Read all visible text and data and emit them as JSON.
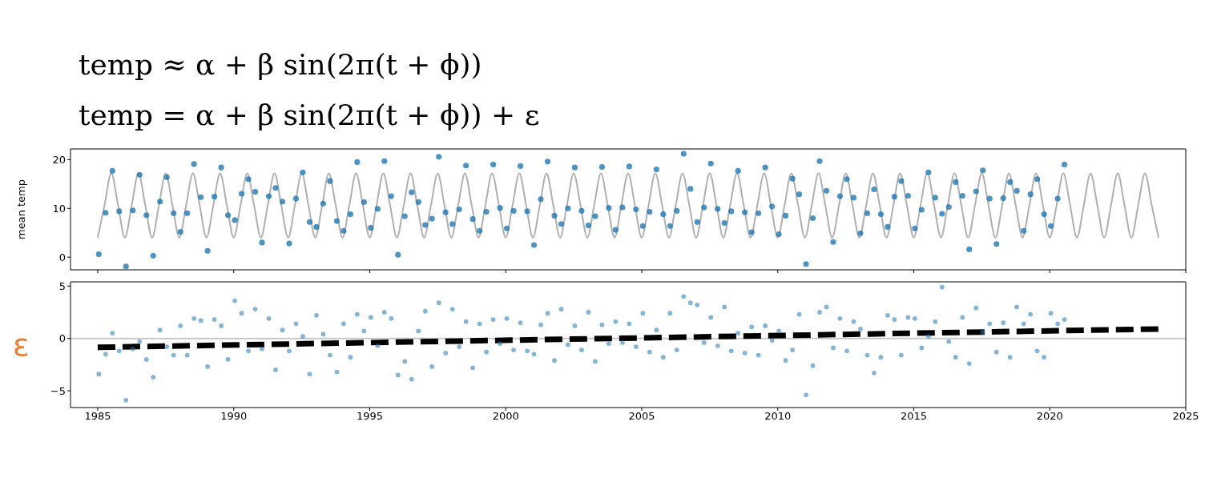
{
  "chart_data": [
    {
      "type": "scatter",
      "title": "temp ≈ α + β sin(2π(t + ϕ))",
      "subtitle": "temp = α + β sin(2π(t + ϕ)) + ε",
      "ylabel": "mean temp",
      "xlim": [
        1984,
        2025
      ],
      "xticks": [
        1985,
        1990,
        1995,
        2000,
        2005,
        2010,
        2015,
        2020,
        2025
      ],
      "ylim": [
        -2.6,
        22.2
      ],
      "yticks": [
        0,
        10,
        20
      ],
      "tick_labels": "y",
      "series": [
        {
          "type": "line",
          "color": "#b0b0b0",
          "marker": "none",
          "line_style": "solid",
          "x": [
            1985,
            1985.25,
            1985.5,
            1985.75,
            1986,
            1986.25,
            1986.5,
            1986.75,
            1987,
            1987.25,
            1987.5,
            1987.75,
            1988,
            1988.25,
            1988.5,
            1988.75,
            1989,
            1989.25,
            1989.5,
            1989.75,
            1990,
            1990.25,
            1990.5,
            1990.75,
            1991,
            1991.25,
            1991.5,
            1991.75,
            1992,
            1992.25,
            1992.5,
            1992.75,
            1993,
            1993.25,
            1993.5,
            1993.75,
            1994,
            1994.25,
            1994.5,
            1994.75,
            1995,
            1995.25,
            1995.5,
            1995.75,
            1996,
            1996.25,
            1996.5,
            1996.75,
            1997,
            1997.25,
            1997.5,
            1997.75,
            1998,
            1998.25,
            1998.5,
            1998.75,
            1999,
            1999.25,
            1999.5,
            1999.75,
            2000,
            2000.25,
            2000.5,
            2000.75,
            2001,
            2001.25,
            2001.5,
            2001.75,
            2002,
            2002.25,
            2002.5,
            2002.75,
            2003,
            2003.25,
            2003.5,
            2003.75,
            2004,
            2004.25,
            2004.5,
            2004.75,
            2005,
            2005.25,
            2005.5,
            2005.75,
            2006,
            2006.25,
            2006.5,
            2006.75,
            2007,
            2007.25,
            2007.5,
            2007.75,
            2008,
            2008.25,
            2008.5,
            2008.75,
            2009,
            2009.25,
            2009.5,
            2009.75,
            2010,
            2010.25,
            2010.5,
            2010.75,
            2011,
            2011.25,
            2011.5,
            2011.75,
            2012,
            2012.25,
            2012.5,
            2012.75,
            2013,
            2013.25,
            2013.5,
            2013.75,
            2014,
            2014.25,
            2014.5,
            2014.75,
            2015,
            2015.25,
            2015.5,
            2015.75,
            2016,
            2016.25,
            2016.5,
            2016.75,
            2017,
            2017.25,
            2017.5,
            2017.75,
            2018,
            2018.25,
            2018.5,
            2018.75,
            2019,
            2019.25,
            2019.5,
            2019.75,
            2020,
            2020.25,
            2020.5,
            2020.75,
            2021,
            2021.25,
            2021.5,
            2021.75,
            2022,
            2022.25,
            2022.5,
            2022.75,
            2023,
            2023.25,
            2023.5,
            2023.75,
            2024
          ],
          "values": [
            4.0,
            10.6,
            17.2,
            10.6,
            4.0,
            10.6,
            17.2,
            10.6,
            4.0,
            10.6,
            17.2,
            10.6,
            4.0,
            10.6,
            17.2,
            10.6,
            4.0,
            10.6,
            17.2,
            10.6,
            4.0,
            10.6,
            17.2,
            10.6,
            4.0,
            10.6,
            17.2,
            10.6,
            4.0,
            10.6,
            17.2,
            10.6,
            4.0,
            10.6,
            17.2,
            10.6,
            4.0,
            10.6,
            17.2,
            10.6,
            4.0,
            10.6,
            17.2,
            10.6,
            4.0,
            10.6,
            17.2,
            10.6,
            4.0,
            10.6,
            17.2,
            10.6,
            4.0,
            10.6,
            17.2,
            10.6,
            4.0,
            10.6,
            17.2,
            10.6,
            4.0,
            10.6,
            17.2,
            10.6,
            4.0,
            10.6,
            17.2,
            10.6,
            4.0,
            10.6,
            17.2,
            10.6,
            4.0,
            10.6,
            17.2,
            10.6,
            4.0,
            10.6,
            17.2,
            10.6,
            4.0,
            10.6,
            17.2,
            10.6,
            4.0,
            10.6,
            17.2,
            10.6,
            4.0,
            10.6,
            17.2,
            10.6,
            4.0,
            10.6,
            17.2,
            10.6,
            4.0,
            10.6,
            17.2,
            10.6,
            4.0,
            10.6,
            17.2,
            10.6,
            4.0,
            10.6,
            17.2,
            10.6,
            4.0,
            10.6,
            17.2,
            10.6,
            4.0,
            10.6,
            17.2,
            10.6,
            4.0,
            10.6,
            17.2,
            10.6,
            4.0,
            10.6,
            17.2,
            10.6,
            4.0,
            10.6,
            17.2,
            10.6,
            4.0,
            10.6,
            17.2,
            10.6,
            4.0,
            10.6,
            17.2,
            10.6,
            4.0,
            10.6,
            17.2,
            10.6,
            4.0,
            10.6,
            17.2,
            10.6,
            4.0,
            10.6,
            17.2,
            10.6,
            4.0,
            10.6,
            17.2,
            10.6,
            4.0,
            10.6,
            17.2,
            10.6,
            4.0
          ]
        },
        {
          "color": "#1f77b4",
          "marker": "circle",
          "x": [
            1985.04,
            1985.29,
            1985.54,
            1985.79,
            1986.04,
            1986.29,
            1986.54,
            1986.79,
            1987.04,
            1987.29,
            1987.54,
            1987.79,
            1988.04,
            1988.29,
            1988.54,
            1988.79,
            1989.04,
            1989.29,
            1989.54,
            1989.79,
            1990.04,
            1990.29,
            1990.54,
            1990.79,
            1991.04,
            1991.29,
            1991.54,
            1991.79,
            1992.04,
            1992.29,
            1992.54,
            1992.79,
            1993.04,
            1993.29,
            1993.54,
            1993.79,
            1994.04,
            1994.29,
            1994.54,
            1994.79,
            1995.04,
            1995.29,
            1995.54,
            1995.79,
            1996.04,
            1996.29,
            1996.54,
            1996.79,
            1997.04,
            1997.29,
            1997.54,
            1997.79,
            1998.04,
            1998.29,
            1998.54,
            1998.79,
            1999.04,
            1999.29,
            1999.54,
            1999.79,
            2000.04,
            2000.29,
            2000.54,
            2000.79,
            2001.04,
            2001.29,
            2001.54,
            2001.79,
            2002.04,
            2002.29,
            2002.54,
            2002.79,
            2003.04,
            2003.29,
            2003.54,
            2003.79,
            2004.04,
            2004.29,
            2004.54,
            2004.79,
            2005.04,
            2005.29,
            2005.54,
            2005.79,
            2006.04,
            2006.29,
            2006.54,
            2006.79,
            2007.04,
            2007.29,
            2007.54,
            2007.79,
            2008.04,
            2008.29,
            2008.54,
            2008.79,
            2009.04,
            2009.29,
            2009.54,
            2009.79,
            2010.04,
            2010.29,
            2010.54,
            2010.79,
            2011.04,
            2011.29,
            2011.54,
            2011.79,
            2012.04,
            2012.29,
            2012.54,
            2012.79,
            2013.04,
            2013.29,
            2013.54,
            2013.79,
            2014.04,
            2014.29,
            2014.54,
            2014.79,
            2015.04,
            2015.29,
            2015.54,
            2015.79,
            2016.04,
            2016.29,
            2016.54,
            2016.79,
            2017.04,
            2017.29,
            2017.54,
            2017.79,
            2018.04,
            2018.29,
            2018.54,
            2018.79,
            2019.04,
            2019.29,
            2019.54,
            2019.79,
            2020.04,
            2020.29,
            2020.54
          ],
          "values": [
            0.6,
            9.1,
            17.7,
            9.4,
            -1.9,
            9.6,
            16.9,
            8.6,
            0.3,
            11.4,
            16.4,
            9.0,
            5.2,
            9.0,
            19.1,
            12.3,
            1.3,
            12.4,
            18.4,
            8.6,
            7.6,
            13.0,
            16.0,
            13.4,
            3.0,
            12.5,
            14.2,
            11.4,
            2.8,
            12.0,
            17.4,
            7.2,
            6.2,
            11.0,
            15.6,
            7.4,
            5.4,
            8.8,
            19.5,
            11.3,
            6.0,
            9.9,
            19.7,
            12.5,
            0.5,
            8.4,
            13.3,
            11.3,
            6.6,
            7.9,
            20.6,
            9.2,
            6.8,
            9.8,
            18.8,
            7.8,
            5.4,
            9.3,
            19.0,
            10.1,
            5.9,
            9.5,
            18.7,
            9.4,
            2.5,
            11.9,
            19.6,
            8.5,
            6.8,
            10.0,
            18.4,
            9.5,
            6.5,
            8.4,
            18.5,
            10.1,
            5.6,
            10.2,
            18.6,
            9.8,
            6.4,
            9.3,
            18.0,
            8.8,
            6.4,
            9.5,
            21.2,
            14.0,
            7.2,
            10.2,
            19.2,
            9.9,
            7.0,
            9.4,
            17.7,
            9.2,
            5.1,
            9.0,
            18.4,
            10.4,
            4.7,
            8.5,
            16.1,
            12.9,
            -1.4,
            8.0,
            19.7,
            13.6,
            3.1,
            12.5,
            16.0,
            12.2,
            4.9,
            9.0,
            13.9,
            8.8,
            6.2,
            12.4,
            15.6,
            12.6,
            5.9,
            9.7,
            17.4,
            12.2,
            8.9,
            10.3,
            15.4,
            12.6,
            1.6,
            13.5,
            17.8,
            12.0,
            2.7,
            12.1,
            15.4,
            13.6,
            5.4,
            12.9,
            16.0,
            8.8,
            6.4,
            12.0,
            19.0
          ]
        }
      ]
    },
    {
      "type": "scatter",
      "ylabel": "ε",
      "xlim": [
        1984,
        2025
      ],
      "xticks": [
        1985,
        1990,
        1995,
        2000,
        2005,
        2010,
        2015,
        2020,
        2025
      ],
      "ylim": [
        -6.6,
        5.4
      ],
      "yticks": [
        -5,
        0,
        5
      ],
      "ref_lines": [
        {
          "axis": "y",
          "value": 0,
          "color": "#c8c8c8"
        }
      ],
      "series": [
        {
          "color": "#1f77b4",
          "marker": "circle",
          "x": [
            1985.04,
            1985.29,
            1985.54,
            1985.79,
            1986.04,
            1986.29,
            1986.54,
            1986.79,
            1987.04,
            1987.29,
            1987.54,
            1987.79,
            1988.04,
            1988.29,
            1988.54,
            1988.79,
            1989.04,
            1989.29,
            1989.54,
            1989.79,
            1990.04,
            1990.29,
            1990.54,
            1990.79,
            1991.04,
            1991.29,
            1991.54,
            1991.79,
            1992.04,
            1992.29,
            1992.54,
            1992.79,
            1993.04,
            1993.29,
            1993.54,
            1993.79,
            1994.04,
            1994.29,
            1994.54,
            1994.79,
            1995.04,
            1995.29,
            1995.54,
            1995.79,
            1996.04,
            1996.29,
            1996.54,
            1996.79,
            1997.04,
            1997.29,
            1997.54,
            1997.79,
            1998.04,
            1998.29,
            1998.54,
            1998.79,
            1999.04,
            1999.29,
            1999.54,
            1999.79,
            2000.04,
            2000.29,
            2000.54,
            2000.79,
            2001.04,
            2001.29,
            2001.54,
            2001.79,
            2002.04,
            2002.29,
            2002.54,
            2002.79,
            2003.04,
            2003.29,
            2003.54,
            2003.79,
            2004.04,
            2004.29,
            2004.54,
            2004.79,
            2005.04,
            2005.29,
            2005.54,
            2005.79,
            2006.04,
            2006.29,
            2006.54,
            2006.79,
            2007.04,
            2007.29,
            2007.54,
            2007.79,
            2008.04,
            2008.29,
            2008.54,
            2008.79,
            2009.04,
            2009.29,
            2009.54,
            2009.79,
            2010.04,
            2010.29,
            2010.54,
            2010.79,
            2011.04,
            2011.29,
            2011.54,
            2011.79,
            2012.04,
            2012.29,
            2012.54,
            2012.79,
            2013.04,
            2013.29,
            2013.54,
            2013.79,
            2014.04,
            2014.29,
            2014.54,
            2014.79,
            2015.04,
            2015.29,
            2015.54,
            2015.79,
            2016.04,
            2016.29,
            2016.54,
            2016.79,
            2017.04,
            2017.29,
            2017.54,
            2017.79,
            2018.04,
            2018.29,
            2018.54,
            2018.79,
            2019.04,
            2019.29,
            2019.54,
            2019.79,
            2020.04,
            2020.29,
            2020.54
          ],
          "values": [
            -3.4,
            -1.5,
            0.5,
            -1.2,
            -5.9,
            -1.0,
            -0.3,
            -2.0,
            -3.7,
            0.8,
            -0.8,
            -1.6,
            1.2,
            -1.6,
            1.9,
            1.7,
            -2.7,
            1.8,
            1.2,
            -2.0,
            3.6,
            2.4,
            -1.2,
            2.8,
            -1.0,
            1.9,
            -3.0,
            0.8,
            -1.2,
            1.4,
            0.2,
            -3.4,
            2.2,
            0.4,
            -1.6,
            -3.2,
            1.4,
            -1.8,
            2.3,
            0.7,
            2.0,
            -0.7,
            2.5,
            1.9,
            -3.5,
            -2.2,
            -3.9,
            0.7,
            2.6,
            -2.7,
            3.4,
            -1.4,
            2.8,
            -0.8,
            1.6,
            -2.8,
            1.4,
            -1.3,
            1.8,
            -0.5,
            1.9,
            -1.1,
            1.5,
            -1.2,
            -1.5,
            1.3,
            2.4,
            -2.1,
            2.8,
            -0.6,
            1.2,
            -1.1,
            2.5,
            -2.2,
            1.3,
            -0.5,
            1.6,
            -0.4,
            1.4,
            -0.8,
            2.4,
            -1.3,
            0.8,
            -1.8,
            2.4,
            -1.1,
            4.0,
            3.4,
            3.2,
            -0.4,
            2.0,
            -0.7,
            3.0,
            -1.2,
            0.5,
            -1.4,
            1.1,
            -1.6,
            1.2,
            -0.2,
            0.7,
            -2.1,
            -1.1,
            2.3,
            -5.4,
            -2.6,
            2.5,
            3.0,
            -0.9,
            1.9,
            -1.2,
            1.6,
            0.9,
            -1.6,
            -3.3,
            -1.8,
            2.2,
            1.8,
            -1.6,
            2.0,
            1.9,
            -0.9,
            0.2,
            1.6,
            4.9,
            -0.3,
            -1.8,
            2.0,
            -2.4,
            2.9,
            0.6,
            1.4,
            -1.3,
            1.5,
            -1.8,
            3.0,
            1.4,
            2.3,
            -1.2,
            -1.8,
            2.4,
            1.4,
            1.8
          ]
        },
        {
          "type": "line",
          "color": "#000000",
          "marker": "none",
          "line_style": "dashed",
          "x": [
            1985,
            2024
          ],
          "values": [
            -0.85,
            0.9
          ]
        }
      ]
    }
  ]
}
